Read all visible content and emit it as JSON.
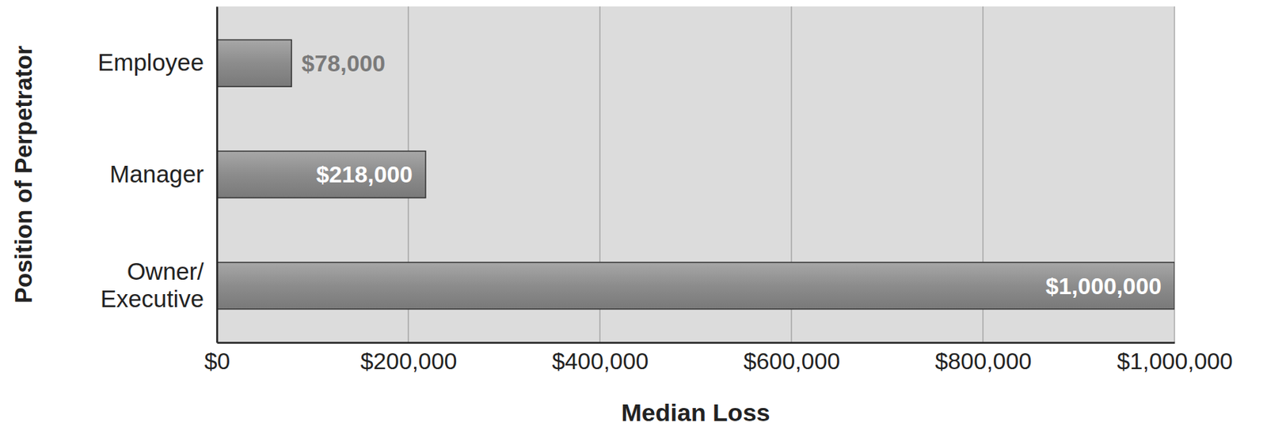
{
  "chart_data": {
    "type": "bar",
    "orientation": "horizontal",
    "x_label": "Median Loss",
    "y_label": "Position of Perpetrator",
    "categories": [
      "Employee",
      "Manager",
      "Owner/Executive"
    ],
    "values": [
      78000,
      218000,
      1000000
    ],
    "value_labels": [
      "$78,000",
      "$218,000",
      "$1,000,000"
    ],
    "data_labels": true,
    "color": "#8c8c8c",
    "xlim": [
      0,
      1000000
    ],
    "xticks": [
      {
        "value": 0,
        "label": "$0"
      },
      {
        "value": 200000,
        "label": "$200,000"
      },
      {
        "value": 400000,
        "label": "$400,000"
      },
      {
        "value": 600000,
        "label": "$600,000"
      },
      {
        "value": 800000,
        "label": "$800,000"
      },
      {
        "value": 1000000,
        "label": "$1,000,000"
      }
    ],
    "grid": true
  }
}
